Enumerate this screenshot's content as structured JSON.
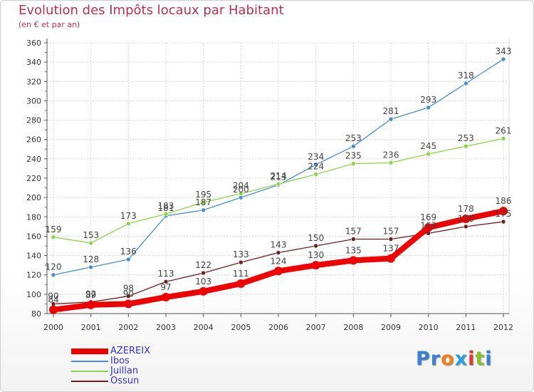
{
  "title": "Evolution des Impôts locaux par Habitant",
  "subtitle": "(en € et par an)",
  "logo": {
    "letters": [
      "P",
      "r",
      "o",
      "x",
      "i",
      "t",
      "i"
    ],
    "colors": [
      "#3a7fd0",
      "#3a7fd0",
      "#f07f1e",
      "#2a9fd8",
      "#e03a2f",
      "#8bbf2a",
      "#3a7fd0"
    ]
  },
  "colors": {
    "title": "#b5344f",
    "grid": "#d8d8d8",
    "axis": "#555555",
    "tick_text": "#333333",
    "value_text": "#444444"
  },
  "chart_data": {
    "type": "line",
    "title": "Evolution des Impôts locaux par Habitant",
    "subtitle": "(en € et par an)",
    "x": [
      "2000",
      "2001",
      "2002",
      "2003",
      "2004",
      "2005",
      "2006",
      "2007",
      "2008",
      "2009",
      "2010",
      "2011",
      "2012"
    ],
    "ylim": [
      80,
      360
    ],
    "yticks": [
      "80",
      "100",
      "120",
      "140",
      "160",
      "180",
      "200",
      "220",
      "240",
      "260",
      "280",
      "300",
      "320",
      "340",
      "360"
    ],
    "grid": true,
    "legend_position": "bottom-left",
    "series": [
      {
        "name": "Ibos",
        "color": "#4a8ec9",
        "values": [
          120,
          128,
          136,
          181,
          187,
          200,
          213,
          234,
          253,
          281,
          293,
          318,
          343
        ],
        "labels": [
          "120",
          "128",
          "136",
          "181",
          "187",
          "200",
          "213",
          "234",
          "253",
          "281",
          "293",
          "318",
          "343"
        ]
      },
      {
        "name": "Juillan",
        "color": "#8ed44a",
        "values": [
          159,
          153,
          173,
          183,
          195,
          204,
          214,
          224,
          235,
          236,
          245,
          253,
          261
        ],
        "labels": [
          "159",
          "153",
          "173",
          "183",
          "195",
          "204",
          "214",
          "224",
          "235",
          "236",
          "245",
          "253",
          "261"
        ]
      },
      {
        "name": "Ossun",
        "color": "#6b1f1f",
        "values": [
          90,
          92,
          98,
          113,
          122,
          133,
          143,
          150,
          157,
          157,
          163,
          170,
          175
        ],
        "labels": [
          "90",
          "92",
          "98",
          "113",
          "122",
          "133",
          "143",
          "150",
          "157",
          "157",
          "163",
          "170",
          "175"
        ]
      },
      {
        "name": "AZEREIX",
        "color": "#ee0000",
        "values": [
          84,
          89,
          90,
          97,
          103,
          111,
          124,
          130,
          135,
          137,
          169,
          178,
          186
        ],
        "labels": [
          "84",
          "89",
          "90",
          "97",
          "103",
          "111",
          "124",
          "130",
          "135",
          "137",
          "169",
          "178",
          "186"
        ]
      }
    ],
    "legend": [
      {
        "name": "AZEREIX",
        "color": "#ee0000",
        "thickness": 8
      },
      {
        "name": "Ibos",
        "color": "#4a8ec9",
        "thickness": 2
      },
      {
        "name": "Juillan",
        "color": "#8ed44a",
        "thickness": 2
      },
      {
        "name": "Ossun",
        "color": "#6b1f1f",
        "thickness": 2
      }
    ]
  }
}
